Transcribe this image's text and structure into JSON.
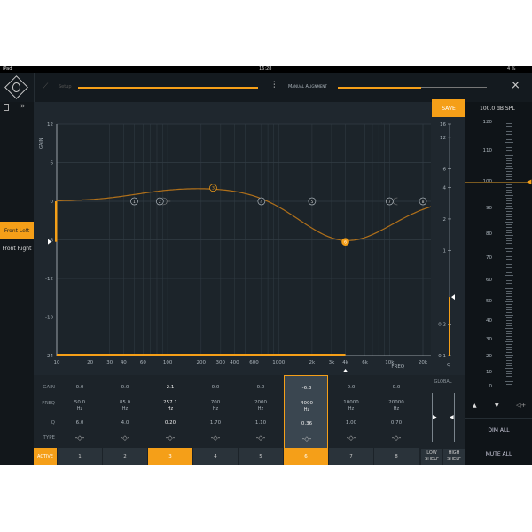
{
  "status": {
    "device": "iPad",
    "time": "16:28",
    "battery": "4 %"
  },
  "nav": {
    "setup_label": "Setup",
    "alignment_label": "Manual Alignment",
    "alignment_progress": 0.56,
    "close": "×"
  },
  "sidebar": {
    "channels": [
      {
        "label": "Front Left",
        "active": true
      },
      {
        "label": "Front Right",
        "active": false
      }
    ]
  },
  "toolbar": {
    "save_label": "SAVE"
  },
  "graph": {
    "gain_label": "GAIN",
    "freq_label": "FREQ",
    "q_label": "Q",
    "gain_ticks": [
      "12",
      "6",
      "0",
      "-6",
      "-12",
      "-18",
      "-24"
    ],
    "freq_ticks": [
      "10",
      "20",
      "30",
      "40",
      "60",
      "100",
      "200",
      "300",
      "400",
      "600",
      "1000",
      "2k",
      "3k",
      "4k",
      "6k",
      "10k",
      "20k"
    ],
    "q_ticks": [
      "16",
      "12",
      "6",
      "4",
      "2",
      "1",
      "0.2",
      "0.1"
    ],
    "selected_band": 6
  },
  "bands": [
    {
      "num": "1",
      "gain": "0.0",
      "freq": "50.0",
      "q": "6.0",
      "g": 0,
      "f": 50,
      "qv": 6
    },
    {
      "num": "2",
      "gain": "0.0",
      "freq": "85.0",
      "q": "4.0",
      "g": 0,
      "f": 85,
      "qv": 4
    },
    {
      "num": "3",
      "gain": "2.1",
      "freq": "257.1",
      "q": "0.20",
      "g": 2.1,
      "f": 257.1,
      "qv": 0.2
    },
    {
      "num": "4",
      "gain": "0.0",
      "freq": "700",
      "q": "1.70",
      "g": 0,
      "f": 700,
      "qv": 1.7
    },
    {
      "num": "5",
      "gain": "0.0",
      "freq": "2000",
      "q": "1.10",
      "g": 0,
      "f": 2000,
      "qv": 1.1
    },
    {
      "num": "6",
      "gain": "-6.3",
      "freq": "4000",
      "q": "0.36",
      "g": -6.3,
      "f": 4000,
      "qv": 0.36
    },
    {
      "num": "7",
      "gain": "0.0",
      "freq": "10000",
      "q": "1.00",
      "g": 0,
      "f": 10000,
      "qv": 1
    },
    {
      "num": "8",
      "gain": "0.0",
      "freq": "20000",
      "q": "0.70",
      "g": 0,
      "f": 20000,
      "qv": 0.7
    }
  ],
  "active_bands": [
    "3",
    "6"
  ],
  "table": {
    "row_labels": [
      "GAIN",
      "FREQ",
      "Q",
      "TYPE",
      "ACTIVE"
    ],
    "unit": "Hz",
    "global_label": "GLOBAL",
    "low_shelf": "LOW SHELF",
    "high_shelf": "HIGH SHELF"
  },
  "level": {
    "readout": "100.0 dB SPL",
    "ticks": [
      "120",
      "110",
      "100",
      "90",
      "80",
      "70",
      "60",
      "50",
      "40",
      "30",
      "20",
      "10",
      "0"
    ],
    "value": 100
  },
  "buttons": {
    "dim_all": "DIM ALL",
    "mute_all": "MUTE ALL",
    "up": "▲",
    "down": "▼",
    "speaker": "◁+"
  },
  "colors": {
    "accent": "#f59f18",
    "background": "#1f272e"
  }
}
